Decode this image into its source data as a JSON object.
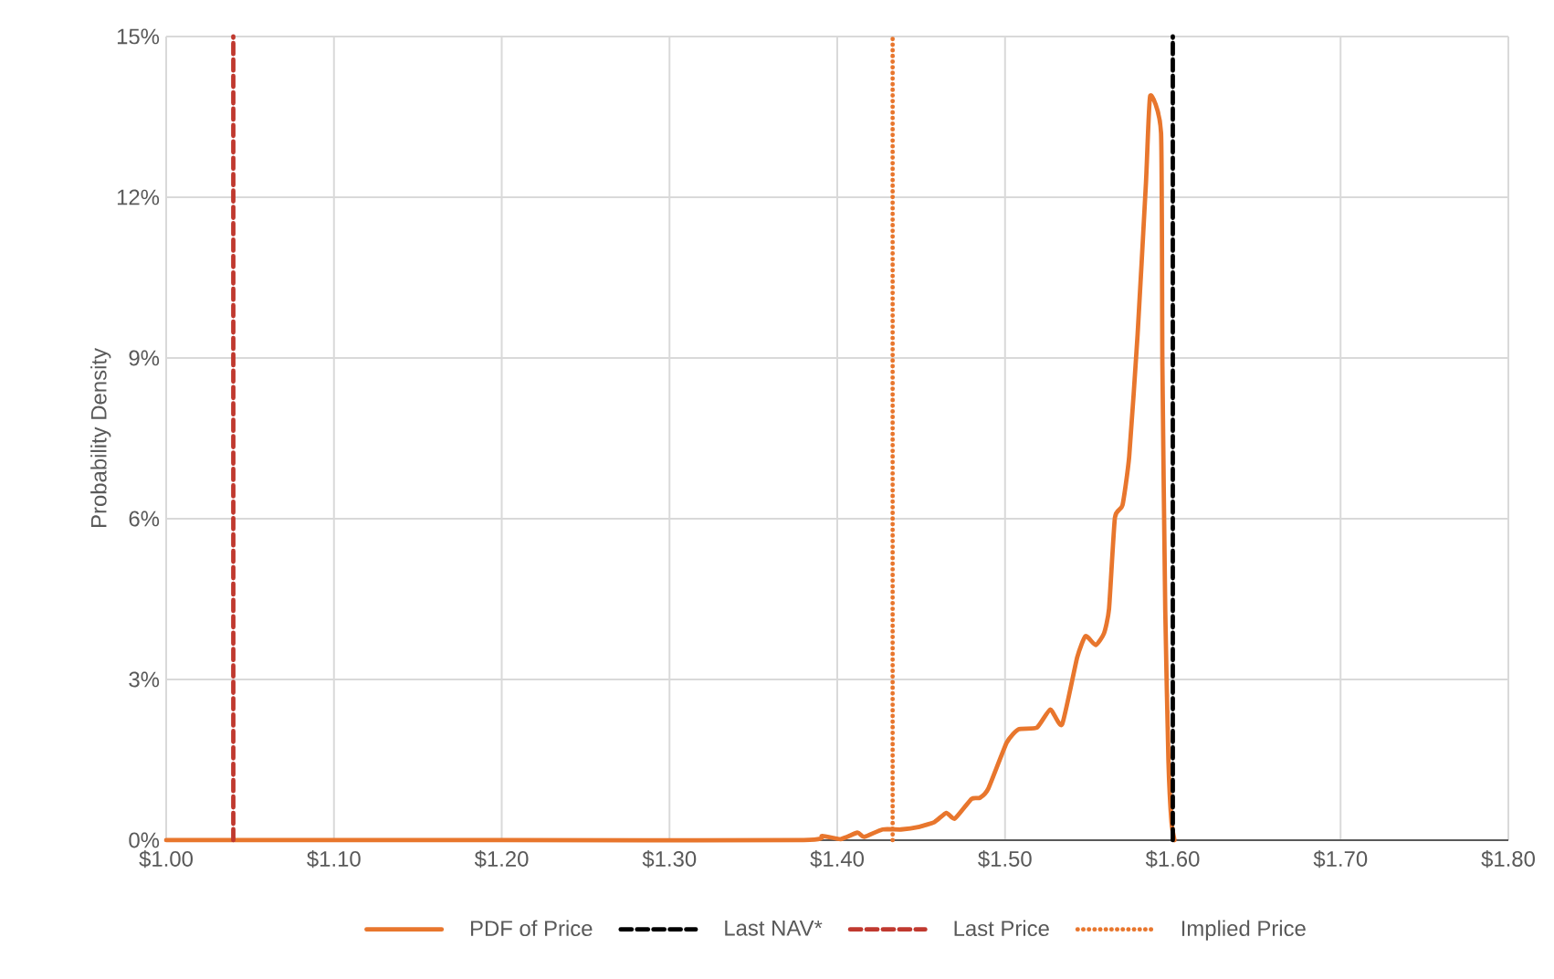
{
  "chart_data": {
    "type": "line",
    "ylabel": "Probability Density",
    "xlim": [
      1.0,
      1.8
    ],
    "ylim": [
      0,
      15
    ],
    "xticks": [
      {
        "value": 1.0,
        "label": "$1.00"
      },
      {
        "value": 1.1,
        "label": "$1.10"
      },
      {
        "value": 1.2,
        "label": "$1.20"
      },
      {
        "value": 1.3,
        "label": "$1.30"
      },
      {
        "value": 1.4,
        "label": "$1.40"
      },
      {
        "value": 1.5,
        "label": "$1.50"
      },
      {
        "value": 1.6,
        "label": "$1.60"
      },
      {
        "value": 1.7,
        "label": "$1.70"
      },
      {
        "value": 1.8,
        "label": "$1.80"
      }
    ],
    "yticks": [
      {
        "value": 0,
        "label": "0%"
      },
      {
        "value": 3,
        "label": "3%"
      },
      {
        "value": 6,
        "label": "6%"
      },
      {
        "value": 9,
        "label": "9%"
      },
      {
        "value": 12,
        "label": "12%"
      },
      {
        "value": 15,
        "label": "15%"
      }
    ],
    "grid": true,
    "legend": "bottom",
    "marker": "none",
    "line_style": "solid",
    "series": [
      {
        "name": "PDF of Price",
        "color": "#e8762d",
        "x": [
          1.0,
          1.2,
          1.38,
          1.391,
          1.402,
          1.412,
          1.416,
          1.427,
          1.438,
          1.449,
          1.458,
          1.465,
          1.47,
          1.48,
          1.485,
          1.49,
          1.501,
          1.508,
          1.519,
          1.527,
          1.534,
          1.543,
          1.548,
          1.554,
          1.559,
          1.562,
          1.5655,
          1.57,
          1.574,
          1.579,
          1.584,
          1.5865,
          1.593,
          1.5938,
          1.5955,
          1.5974,
          1.5992,
          1.601
        ],
        "values": [
          0,
          0,
          0,
          0.08,
          0.02,
          0.14,
          0.06,
          0.2,
          0.2,
          0.25,
          0.34,
          0.51,
          0.4,
          0.77,
          0.79,
          0.96,
          1.82,
          2.07,
          2.1,
          2.44,
          2.16,
          3.41,
          3.81,
          3.64,
          3.86,
          4.32,
          6.02,
          6.25,
          7.16,
          9.43,
          12.27,
          13.89,
          13.2,
          8.86,
          4.3,
          1.48,
          0.34,
          0
        ]
      }
    ],
    "ref_lines": [
      {
        "axis": "x",
        "value": 1.6,
        "label": "Last NAV*",
        "color": "#000000",
        "line_style": "dashed"
      },
      {
        "axis": "x",
        "value": 1.04,
        "label": "Last Price",
        "color": "#c0392f",
        "line_style": "dashed"
      },
      {
        "axis": "x",
        "value": 1.433,
        "label": "Implied Price",
        "color": "#e8762d",
        "line_style": "dotted"
      }
    ]
  }
}
